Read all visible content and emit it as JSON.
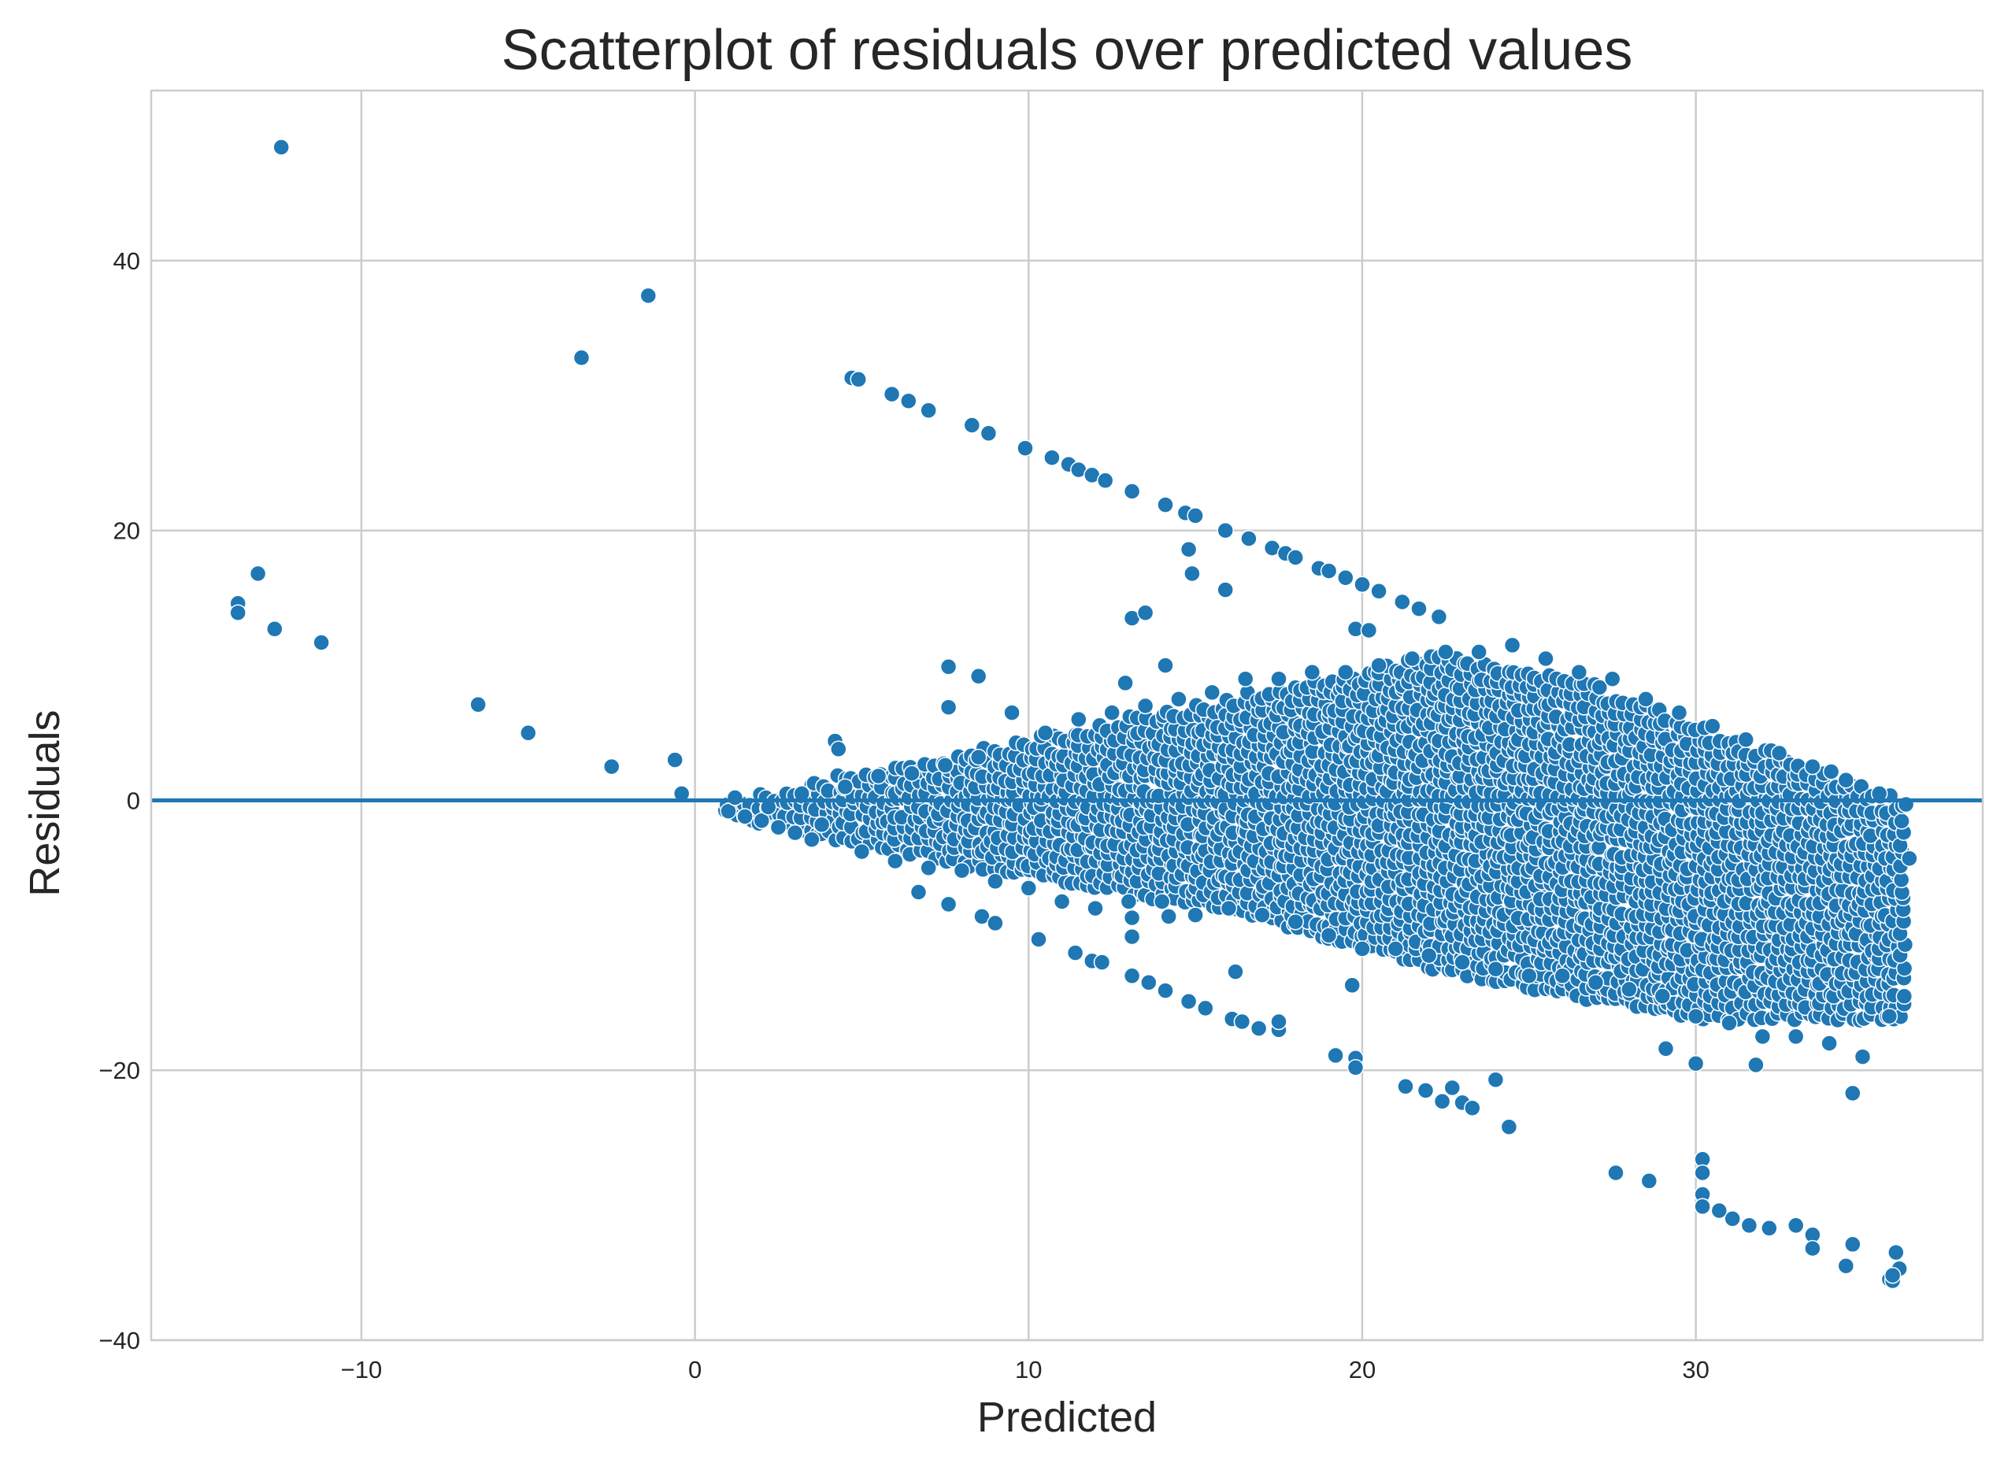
{
  "colors": {
    "series": "#1f77b4",
    "grid": "#cccccc",
    "text": "#262626"
  },
  "chart_data": {
    "type": "scatter",
    "title": "Scatterplot of residuals over predicted values",
    "xlabel": "Predicted",
    "ylabel": "Residuals",
    "xlim": [
      -16.3,
      38.6
    ],
    "ylim": [
      -40,
      52.6
    ],
    "x_ticks": [
      -10,
      0,
      10,
      20,
      30
    ],
    "x_tick_labels": [
      "−10",
      "0",
      "10",
      "20",
      "30"
    ],
    "y_ticks": [
      -40,
      -20,
      0,
      20,
      40
    ],
    "y_tick_labels": [
      "−40",
      "−20",
      "0",
      "20",
      "40"
    ],
    "grid": true,
    "legend": "none",
    "reference_line": {
      "y": 0
    },
    "series": [
      {
        "points": [
          [
            -12.4,
            48.4
          ],
          [
            -1.4,
            37.4
          ],
          [
            -3.4,
            32.8
          ],
          [
            -13.1,
            16.8
          ],
          [
            -13.7,
            14.6
          ],
          [
            -13.7,
            13.9
          ],
          [
            -12.6,
            12.7
          ],
          [
            -11.2,
            11.7
          ],
          [
            -6.5,
            7.1
          ],
          [
            -5.0,
            5.0
          ],
          [
            -2.5,
            2.5
          ],
          [
            -0.6,
            3.0
          ],
          [
            -0.4,
            0.5
          ],
          [
            4.7,
            31.3
          ],
          [
            4.9,
            31.2
          ],
          [
            5.9,
            30.1
          ],
          [
            6.4,
            29.6
          ],
          [
            7.0,
            28.9
          ],
          [
            8.3,
            27.8
          ],
          [
            8.8,
            27.2
          ],
          [
            9.9,
            26.1
          ],
          [
            10.7,
            25.4
          ],
          [
            11.2,
            24.9
          ],
          [
            11.5,
            24.5
          ],
          [
            11.9,
            24.1
          ],
          [
            12.3,
            23.7
          ],
          [
            13.1,
            22.9
          ],
          [
            14.1,
            21.9
          ],
          [
            14.7,
            21.3
          ],
          [
            15.0,
            21.1
          ],
          [
            15.9,
            20.0
          ],
          [
            16.6,
            19.4
          ],
          [
            17.3,
            18.7
          ],
          [
            17.7,
            18.3
          ],
          [
            18.0,
            18.0
          ],
          [
            18.7,
            17.2
          ],
          [
            19.0,
            17.0
          ],
          [
            19.5,
            16.5
          ],
          [
            20.0,
            16.0
          ],
          [
            20.5,
            15.5
          ],
          [
            21.2,
            14.7
          ],
          [
            21.7,
            14.2
          ],
          [
            22.3,
            13.6
          ],
          [
            14.8,
            18.6
          ],
          [
            14.9,
            16.8
          ],
          [
            15.9,
            15.6
          ],
          [
            13.1,
            13.5
          ],
          [
            13.5,
            13.9
          ],
          [
            7.6,
            9.9
          ],
          [
            8.5,
            9.2
          ],
          [
            7.6,
            6.9
          ],
          [
            4.2,
            4.4
          ],
          [
            4.3,
            3.8
          ],
          [
            19.8,
            12.7
          ],
          [
            20.2,
            12.6
          ],
          [
            12.9,
            8.7
          ],
          [
            14.1,
            10.0
          ],
          [
            6.7,
            -6.8
          ],
          [
            7.6,
            -7.7
          ],
          [
            8.6,
            -8.6
          ],
          [
            9.0,
            -9.1
          ],
          [
            10.3,
            -10.3
          ],
          [
            11.4,
            -11.3
          ],
          [
            11.9,
            -11.9
          ],
          [
            12.2,
            -12.0
          ],
          [
            13.1,
            -13.0
          ],
          [
            13.6,
            -13.5
          ],
          [
            14.1,
            -14.1
          ],
          [
            14.8,
            -14.9
          ],
          [
            15.3,
            -15.4
          ],
          [
            16.1,
            -16.2
          ],
          [
            16.4,
            -16.4
          ],
          [
            16.9,
            -16.9
          ],
          [
            17.5,
            -17.0
          ],
          [
            17.5,
            -16.4
          ],
          [
            16.2,
            -12.7
          ],
          [
            13.1,
            -8.7
          ],
          [
            13.1,
            -10.1
          ],
          [
            14.2,
            -8.6
          ],
          [
            19.2,
            -18.9
          ],
          [
            19.8,
            -19.1
          ],
          [
            19.8,
            -19.8
          ],
          [
            19.7,
            -13.7
          ],
          [
            21.3,
            -21.2
          ],
          [
            21.9,
            -21.5
          ],
          [
            22.4,
            -22.3
          ],
          [
            22.7,
            -21.3
          ],
          [
            23.0,
            -22.4
          ],
          [
            23.3,
            -22.8
          ],
          [
            24.0,
            -20.7
          ],
          [
            24.4,
            -24.2
          ],
          [
            27.6,
            -27.6
          ],
          [
            28.6,
            -28.2
          ],
          [
            30.2,
            -26.6
          ],
          [
            30.2,
            -27.6
          ],
          [
            30.2,
            -29.2
          ],
          [
            30.2,
            -30.1
          ],
          [
            30.7,
            -30.4
          ],
          [
            31.1,
            -31.0
          ],
          [
            31.6,
            -31.5
          ],
          [
            32.2,
            -31.7
          ],
          [
            33.0,
            -31.5
          ],
          [
            33.5,
            -32.2
          ],
          [
            33.5,
            -33.2
          ],
          [
            34.5,
            -34.5
          ],
          [
            34.7,
            -32.9
          ],
          [
            35.8,
            -35.5
          ],
          [
            35.9,
            -35.6
          ],
          [
            36.0,
            -33.5
          ],
          [
            36.1,
            -34.7
          ],
          [
            35.9,
            -35.2
          ],
          [
            29.1,
            -18.4
          ],
          [
            30.0,
            -19.5
          ],
          [
            31.8,
            -19.6
          ],
          [
            34.7,
            -21.7
          ],
          [
            36.4,
            -4.3
          ],
          [
            36.3,
            -0.3
          ],
          [
            1.0,
            -0.8
          ],
          [
            1.5,
            -1.2
          ],
          [
            2.0,
            -1.5
          ],
          [
            2.5,
            -2.0
          ],
          [
            3.0,
            -2.4
          ],
          [
            3.5,
            -2.9
          ],
          [
            1.2,
            0.2
          ],
          [
            2.2,
            -0.5
          ],
          [
            3.2,
            0.5
          ],
          [
            3.8,
            -1.8
          ],
          [
            4.5,
            1.0
          ],
          [
            5.0,
            -3.8
          ],
          [
            5.5,
            1.8
          ],
          [
            6.0,
            -4.5
          ],
          [
            6.5,
            2.0
          ],
          [
            7.0,
            -5.0
          ],
          [
            7.5,
            2.6
          ],
          [
            8.0,
            -5.2
          ],
          [
            8.5,
            3.2
          ],
          [
            9.0,
            -6.0
          ],
          [
            9.5,
            6.5
          ],
          [
            10.0,
            -6.5
          ],
          [
            10.5,
            5.0
          ],
          [
            11.0,
            -7.5
          ],
          [
            11.5,
            6.0
          ],
          [
            12.0,
            -8.0
          ],
          [
            12.5,
            6.5
          ],
          [
            13.0,
            -7.5
          ],
          [
            13.5,
            7.0
          ],
          [
            14.0,
            -7.5
          ],
          [
            14.5,
            7.5
          ],
          [
            15.0,
            -8.5
          ],
          [
            15.5,
            8.0
          ],
          [
            16.0,
            -8.0
          ],
          [
            16.5,
            9.0
          ],
          [
            17.0,
            -8.5
          ],
          [
            17.5,
            9.0
          ],
          [
            18.0,
            -9.0
          ],
          [
            18.5,
            9.5
          ],
          [
            19.0,
            -10.0
          ],
          [
            19.5,
            9.5
          ],
          [
            20.0,
            -11.0
          ],
          [
            20.5,
            10.0
          ],
          [
            21.0,
            -11.0
          ],
          [
            21.5,
            10.5
          ],
          [
            22.0,
            -11.5
          ],
          [
            22.5,
            11.0
          ],
          [
            23.0,
            -12.0
          ],
          [
            23.5,
            11.0
          ],
          [
            24.0,
            -12.5
          ],
          [
            24.5,
            11.5
          ],
          [
            25.0,
            -13.0
          ],
          [
            25.5,
            10.5
          ],
          [
            26.0,
            -13.0
          ],
          [
            26.5,
            9.5
          ],
          [
            27.0,
            -13.5
          ],
          [
            27.5,
            9.0
          ],
          [
            28.0,
            -14.0
          ],
          [
            28.5,
            7.5
          ],
          [
            29.0,
            -14.5
          ],
          [
            29.5,
            6.5
          ],
          [
            30.0,
            -16.0
          ],
          [
            30.5,
            5.5
          ],
          [
            31.0,
            -16.5
          ],
          [
            31.5,
            4.5
          ],
          [
            32.0,
            -17.5
          ],
          [
            32.5,
            3.5
          ],
          [
            33.0,
            -17.5
          ],
          [
            33.5,
            2.5
          ],
          [
            34.0,
            -18.0
          ],
          [
            34.5,
            1.5
          ],
          [
            35.0,
            -19.0
          ],
          [
            35.5,
            0.5
          ],
          [
            35.8,
            -16.0
          ]
        ]
      }
    ],
    "dense_cloud": {
      "description_free": true,
      "x_range": [
        1.0,
        36.2
      ],
      "upper_bound_at_x": [
        [
          1.0,
          0.0
        ],
        [
          9.0,
          4.0
        ],
        [
          16.0,
          7.5
        ],
        [
          22.5,
          11.0
        ],
        [
          27.0,
          8.5
        ],
        [
          36.0,
          0.0
        ]
      ],
      "lower_bound_at_x": [
        [
          1.0,
          -1.0
        ],
        [
          9.0,
          -5.0
        ],
        [
          16.0,
          -8.0
        ],
        [
          22.5,
          -12.5
        ],
        [
          30.0,
          -16.0
        ],
        [
          36.0,
          -16.0
        ]
      ]
    }
  }
}
